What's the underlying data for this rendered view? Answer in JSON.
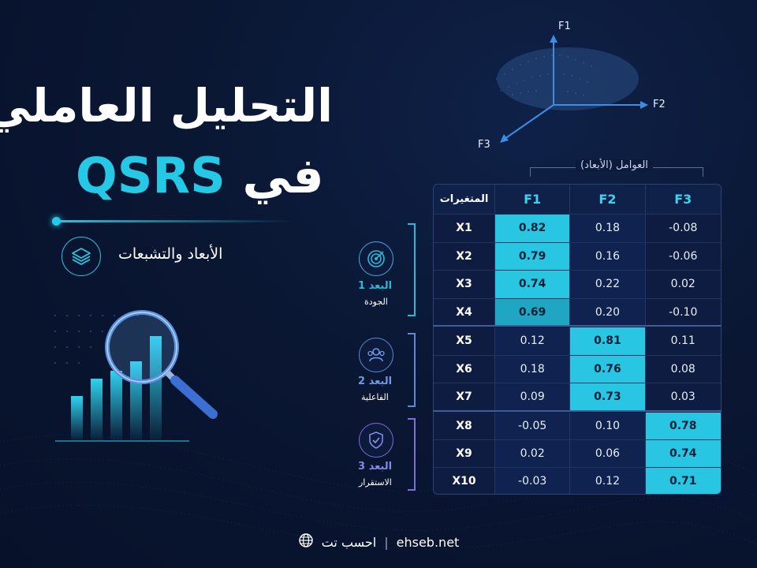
{
  "title": {
    "line1": "التحليل العاملي",
    "line2_prefix": "QSRS",
    "line2_word": "في"
  },
  "subtitle": "الأبعاد والتشبعات",
  "axes": {
    "f1": "F1",
    "f2": "F2",
    "f3": "F3"
  },
  "factors_label": "العوامل (الأبعاد)",
  "table": {
    "headers": {
      "var": "المتغيرات",
      "f1": "F1",
      "f2": "F2",
      "f3": "F3"
    },
    "rows": [
      {
        "var": "X1",
        "f1": "0.82",
        "f2": "0.18",
        "f3": "-0.08"
      },
      {
        "var": "X2",
        "f1": "0.79",
        "f2": "0.16",
        "f3": "-0.06"
      },
      {
        "var": "X3",
        "f1": "0.74",
        "f2": "0.22",
        "f3": "0.02"
      },
      {
        "var": "X4",
        "f1": "0.69",
        "f2": "0.20",
        "f3": "-0.10"
      },
      {
        "var": "X5",
        "f1": "0.12",
        "f2": "0.81",
        "f3": "0.11"
      },
      {
        "var": "X6",
        "f1": "0.18",
        "f2": "0.76",
        "f3": "0.08"
      },
      {
        "var": "X7",
        "f1": "0.09",
        "f2": "0.73",
        "f3": "0.03"
      },
      {
        "var": "X8",
        "f1": "-0.05",
        "f2": "0.10",
        "f3": "0.78"
      },
      {
        "var": "X9",
        "f1": "0.02",
        "f2": "0.06",
        "f3": "0.74"
      },
      {
        "var": "X10",
        "f1": "-0.03",
        "f2": "0.12",
        "f3": "0.71"
      }
    ]
  },
  "dimensions": [
    {
      "title": "البعد 1",
      "sub": "الجودة",
      "icon": "target-icon",
      "color": "#2ab8d8"
    },
    {
      "title": "البعد 2",
      "sub": "الفاعلية",
      "icon": "people-icon",
      "color": "#5b89d9"
    },
    {
      "title": "البعد 3",
      "sub": "الاستقرار",
      "icon": "shield-check-icon",
      "color": "#7c6fd8"
    }
  ],
  "footer": {
    "brand": "احسب تت",
    "separator": "|",
    "site": "ehseb.net",
    "icon": "globe-icon"
  },
  "colors": {
    "accent": "#25c9e6",
    "background": "#0a1733"
  }
}
